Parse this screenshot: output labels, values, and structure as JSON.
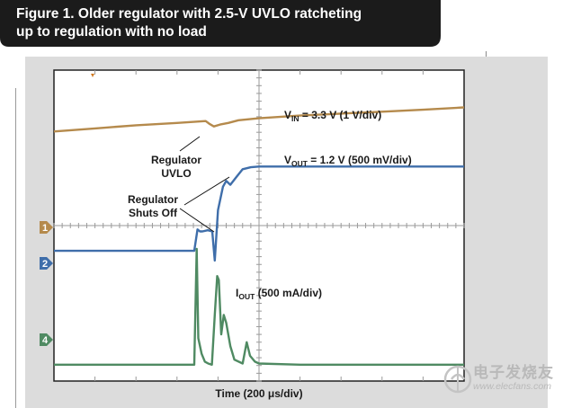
{
  "figure": {
    "title": "Figure 1. Older regulator with 2.5-V UVLO ratcheting\nup to regulation with no load",
    "x_axis_label": "Time (200 μs/div)"
  },
  "annotations": {
    "vin": {
      "main": "V",
      "sub": "IN",
      "rest": " = 3.3 V (1 V/div)"
    },
    "vout": {
      "main": "V",
      "sub": "OUT",
      "rest": " = 1.2 V (500 mV/div)"
    },
    "iout": {
      "main": "I",
      "sub": "OUT",
      "rest": " (500 mA/div)"
    },
    "uvlo_line1": "Regulator",
    "uvlo_line2": "UVLO",
    "shutoff_line1": "Regulator",
    "shutoff_line2": "Shuts Off"
  },
  "channel_markers": [
    {
      "label": "1",
      "color": "#b58a4c"
    },
    {
      "label": "2",
      "color": "#3f6eaa"
    },
    {
      "label": "4",
      "color": "#4f8a62"
    }
  ],
  "watermark": {
    "cn": "电子发烧友",
    "url": "www.elecfans.com"
  },
  "chart_data": {
    "type": "line",
    "title": "Figure 1. Older regulator with 2.5-V UVLO ratcheting up to regulation with no load",
    "xlabel": "Time (200 μs/div)",
    "ylabel": "",
    "x_unit": "div",
    "y_unit": "div",
    "xlim": [
      0,
      10
    ],
    "ylim": [
      -4,
      4
    ],
    "grid": true,
    "series": [
      {
        "name": "VIN = 3.3 V (1 V/div)",
        "color": "#b58a4c",
        "x": [
          0,
          1,
          2,
          3,
          3.7,
          3.8,
          3.9,
          4.05,
          4.25,
          4.5,
          5,
          6,
          7,
          8,
          9,
          10
        ],
        "y": [
          2.42,
          2.5,
          2.58,
          2.64,
          2.69,
          2.61,
          2.55,
          2.6,
          2.64,
          2.71,
          2.76,
          2.83,
          2.88,
          2.93,
          2.98,
          3.04
        ]
      },
      {
        "name": "VOUT = 1.2 V (500 mV/div)",
        "color": "#3f6eaa",
        "x": [
          0,
          2.85,
          3.42,
          3.5,
          3.56,
          3.62,
          3.75,
          3.86,
          3.92,
          4.0,
          4.12,
          4.2,
          4.3,
          4.45,
          4.6,
          4.8,
          5.0,
          5.5,
          6,
          7,
          8,
          9,
          10
        ],
        "y": [
          -0.65,
          -0.65,
          -0.65,
          -0.1,
          -0.15,
          -0.15,
          -0.12,
          -0.15,
          -0.9,
          0.4,
          1.0,
          1.15,
          1.05,
          1.25,
          1.45,
          1.5,
          1.52,
          1.52,
          1.52,
          1.52,
          1.52,
          1.52,
          1.52
        ]
      },
      {
        "name": "IOUT (500 mA/div)",
        "color": "#4f8a62",
        "x": [
          0,
          2.85,
          3.42,
          3.48,
          3.52,
          3.6,
          3.68,
          3.76,
          3.85,
          3.92,
          3.98,
          4.02,
          4.08,
          4.14,
          4.2,
          4.3,
          4.4,
          4.6,
          4.7,
          4.78,
          4.9,
          5.0,
          6,
          7,
          8,
          9,
          10
        ],
        "y": [
          -3.58,
          -3.58,
          -3.58,
          -0.6,
          -2.9,
          -3.3,
          -3.5,
          -3.55,
          -3.58,
          -2.3,
          -1.3,
          -1.4,
          -2.8,
          -2.3,
          -2.5,
          -3.1,
          -3.45,
          -3.55,
          -3.0,
          -3.35,
          -3.5,
          -3.55,
          -3.58,
          -3.58,
          -3.58,
          -3.58,
          -3.58
        ]
      }
    ]
  }
}
